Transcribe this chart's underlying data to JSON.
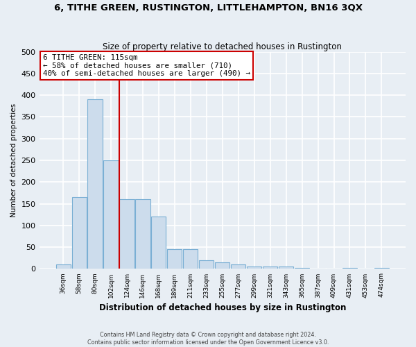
{
  "title": "6, TITHE GREEN, RUSTINGTON, LITTLEHAMPTON, BN16 3QX",
  "subtitle": "Size of property relative to detached houses in Rustington",
  "xlabel": "Distribution of detached houses by size in Rustington",
  "ylabel": "Number of detached properties",
  "footer_line1": "Contains HM Land Registry data © Crown copyright and database right 2024.",
  "footer_line2": "Contains public sector information licensed under the Open Government Licence v3.0.",
  "bar_labels": [
    "36sqm",
    "58sqm",
    "80sqm",
    "102sqm",
    "124sqm",
    "146sqm",
    "168sqm",
    "189sqm",
    "211sqm",
    "233sqm",
    "255sqm",
    "277sqm",
    "299sqm",
    "321sqm",
    "343sqm",
    "365sqm",
    "387sqm",
    "409sqm",
    "431sqm",
    "453sqm",
    "474sqm"
  ],
  "bar_values": [
    10,
    165,
    390,
    250,
    160,
    160,
    120,
    45,
    45,
    20,
    15,
    10,
    5,
    5,
    5,
    2,
    0,
    0,
    2,
    0,
    2
  ],
  "bar_color": "#ccdcec",
  "bar_edgecolor": "#7aafd4",
  "property_line_label": "6 TITHE GREEN: 115sqm",
  "annotation_line2": "← 58% of detached houses are smaller (710)",
  "annotation_line3": "40% of semi-detached houses are larger (490) →",
  "annotation_box_color": "#cc0000",
  "vline_color": "#cc0000",
  "vline_index": 3.5,
  "ylim": [
    0,
    500
  ],
  "yticks": [
    0,
    50,
    100,
    150,
    200,
    250,
    300,
    350,
    400,
    450,
    500
  ],
  "background_color": "#e8eef4",
  "grid_color": "#ffffff",
  "title_fontsize": 9.5,
  "subtitle_fontsize": 8.5
}
